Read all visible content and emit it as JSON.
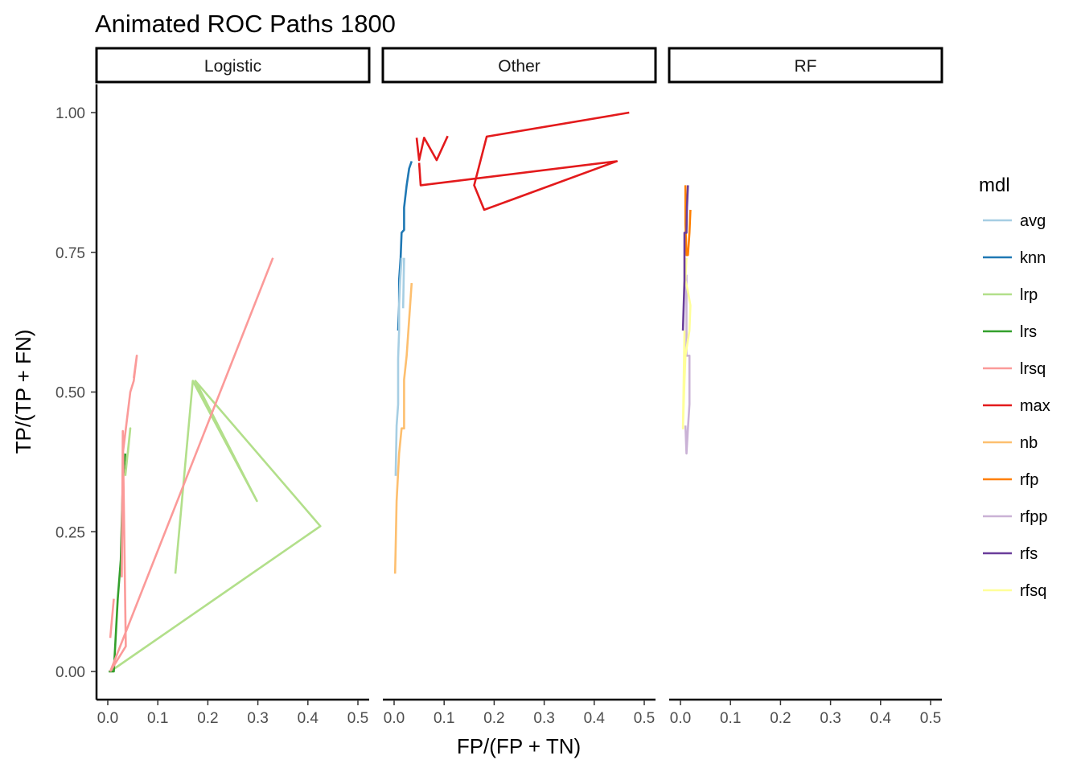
{
  "chart_data": {
    "type": "line",
    "title": "Animated ROC Paths 1800",
    "xlabel": "FP/(FP + TN)",
    "ylabel": "TP/(TP + FN)",
    "xlim": [
      0,
      0.5
    ],
    "ylim": [
      0,
      1
    ],
    "x_ticks": [
      "0.0",
      "0.1",
      "0.2",
      "0.3",
      "0.4",
      "0.5"
    ],
    "y_ticks": [
      "0.00",
      "0.25",
      "0.50",
      "0.75",
      "1.00"
    ],
    "grid": false,
    "legend_title": "mdl",
    "legend_position": "right",
    "legend": [
      {
        "name": "avg",
        "color": "#a6cee3"
      },
      {
        "name": "knn",
        "color": "#1f78b4"
      },
      {
        "name": "lrp",
        "color": "#b2df8a"
      },
      {
        "name": "lrs",
        "color": "#33a02c"
      },
      {
        "name": "lrsq",
        "color": "#fb9a99"
      },
      {
        "name": "max",
        "color": "#e31a1c"
      },
      {
        "name": "nb",
        "color": "#fdbf6f"
      },
      {
        "name": "rfp",
        "color": "#ff7f00"
      },
      {
        "name": "rfpp",
        "color": "#cab2d6"
      },
      {
        "name": "rfs",
        "color": "#6a3d9a"
      },
      {
        "name": "rfsq",
        "color": "#ffff99"
      }
    ],
    "facets": [
      {
        "label": "Logistic",
        "series": [
          {
            "name": "lrp",
            "color": "#b2df8a",
            "points": [
              [
                0.005,
                0.0
              ],
              [
                0.425,
                0.26
              ],
              [
                0.175,
                0.52
              ],
              [
                0.298,
                0.305
              ],
              [
                0.17,
                0.52
              ],
              [
                0.135,
                0.175
              ]
            ]
          },
          {
            "name": "lrs",
            "color": "#33a02c",
            "points": [
              [
                0.002,
                0.0
              ],
              [
                0.012,
                0.0
              ],
              [
                0.02,
                0.13
              ],
              [
                0.026,
                0.2
              ],
              [
                0.03,
                0.34
              ],
              [
                0.035,
                0.39
              ]
            ]
          },
          {
            "name": "lrsq",
            "color": "#fb9a99",
            "points": [
              [
                0.005,
                0.0
              ],
              [
                0.036,
                0.045
              ],
              [
                0.03,
                0.43
              ],
              [
                0.028,
                0.17
              ],
              [
                0.03,
                0.39
              ],
              [
                0.045,
                0.5
              ],
              [
                0.052,
                0.52
              ],
              [
                0.058,
                0.565
              ],
              [
                0.052,
                0.525
              ]
            ]
          },
          {
            "name": "lrsq",
            "color": "#fb9a99",
            "points": [
              [
                0.005,
                0.0
              ],
              [
                0.33,
                0.74
              ]
            ]
          },
          {
            "name": "lrsq",
            "color": "#fb9a99",
            "points": [
              [
                0.005,
                0.06
              ],
              [
                0.012,
                0.13
              ]
            ]
          },
          {
            "name": "lrp",
            "color": "#b2df8a",
            "points": [
              [
                0.035,
                0.35
              ],
              [
                0.045,
                0.435
              ],
              [
                0.04,
                0.39
              ]
            ]
          }
        ]
      },
      {
        "label": "Other",
        "series": [
          {
            "name": "max",
            "color": "#e31a1c",
            "points": [
              [
                0.045,
                0.955
              ],
              [
                0.05,
                0.915
              ],
              [
                0.06,
                0.955
              ],
              [
                0.085,
                0.915
              ],
              [
                0.107,
                0.958
              ]
            ]
          },
          {
            "name": "max",
            "color": "#e31a1c",
            "points": [
              [
                0.05,
                0.91
              ],
              [
                0.053,
                0.87
              ],
              [
                0.445,
                0.913
              ],
              [
                0.18,
                0.826
              ],
              [
                0.16,
                0.87
              ],
              [
                0.185,
                0.957
              ],
              [
                0.47,
                1.0
              ]
            ]
          },
          {
            "name": "knn",
            "color": "#1f78b4",
            "points": [
              [
                0.035,
                0.913
              ],
              [
                0.03,
                0.9
              ],
              [
                0.025,
                0.87
              ],
              [
                0.02,
                0.83
              ],
              [
                0.02,
                0.79
              ],
              [
                0.015,
                0.785
              ],
              [
                0.013,
                0.74
              ],
              [
                0.01,
                0.7
              ],
              [
                0.01,
                0.655
              ],
              [
                0.008,
                0.61
              ]
            ]
          },
          {
            "name": "avg",
            "color": "#a6cee3",
            "points": [
              [
                0.015,
                0.74
              ],
              [
                0.012,
                0.7
              ],
              [
                0.01,
                0.655
              ],
              [
                0.01,
                0.61
              ],
              [
                0.008,
                0.56
              ],
              [
                0.008,
                0.52
              ],
              [
                0.008,
                0.478
              ],
              [
                0.005,
                0.44
              ],
              [
                0.003,
                0.35
              ]
            ]
          },
          {
            "name": "avg",
            "color": "#a6cee3",
            "points": [
              [
                0.02,
                0.74
              ],
              [
                0.018,
                0.65
              ]
            ]
          },
          {
            "name": "nb",
            "color": "#fdbf6f",
            "points": [
              [
                0.035,
                0.695
              ],
              [
                0.025,
                0.565
              ],
              [
                0.02,
                0.522
              ],
              [
                0.02,
                0.435
              ],
              [
                0.015,
                0.435
              ],
              [
                0.01,
                0.39
              ],
              [
                0.005,
                0.305
              ],
              [
                0.003,
                0.22
              ],
              [
                0.002,
                0.175
              ]
            ]
          }
        ]
      },
      {
        "label": "RF",
        "series": [
          {
            "name": "rfpp",
            "color": "#cab2d6",
            "points": [
              [
                0.012,
                0.71
              ],
              [
                0.012,
                0.61
              ],
              [
                0.012,
                0.565
              ],
              [
                0.018,
                0.565
              ],
              [
                0.018,
                0.478
              ],
              [
                0.015,
                0.435
              ],
              [
                0.012,
                0.39
              ],
              [
                0.01,
                0.44
              ]
            ]
          },
          {
            "name": "rfsq",
            "color": "#ffff99",
            "points": [
              [
                0.012,
                0.74
              ],
              [
                0.01,
                0.7
              ],
              [
                0.015,
                0.68
              ],
              [
                0.02,
                0.655
              ],
              [
                0.018,
                0.61
              ],
              [
                0.01,
                0.565
              ],
              [
                0.008,
                0.52
              ],
              [
                0.005,
                0.435
              ],
              [
                0.008,
                0.61
              ]
            ]
          },
          {
            "name": "rfp",
            "color": "#ff7f00",
            "points": [
              [
                0.01,
                0.87
              ],
              [
                0.01,
                0.8
              ],
              [
                0.012,
                0.745
              ],
              [
                0.015,
                0.745
              ],
              [
                0.018,
                0.785
              ],
              [
                0.02,
                0.826
              ]
            ]
          },
          {
            "name": "rfs",
            "color": "#6a3d9a",
            "points": [
              [
                0.015,
                0.87
              ],
              [
                0.013,
                0.83
              ],
              [
                0.012,
                0.785
              ],
              [
                0.008,
                0.785
              ],
              [
                0.008,
                0.7
              ],
              [
                0.005,
                0.61
              ]
            ]
          }
        ]
      }
    ]
  }
}
